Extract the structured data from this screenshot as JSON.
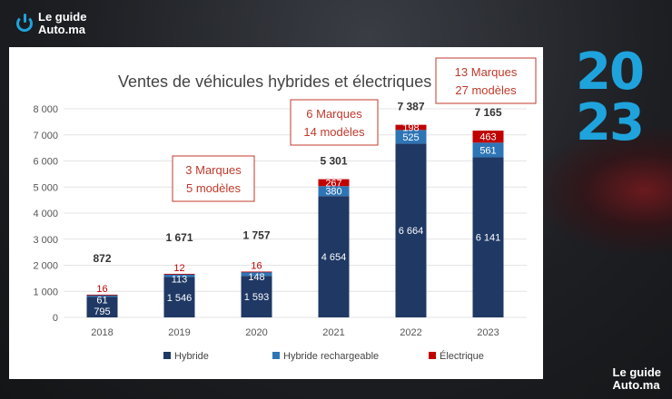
{
  "branding": {
    "logo_line1": "Le guide",
    "logo_line2": "Auto.ma",
    "year": "2023"
  },
  "colors": {
    "hybride": "#1f3864",
    "hybride_rechargeable": "#2e75b6",
    "electrique": "#c00000",
    "callout": "#c0392b",
    "accent": "#1fa3dc"
  },
  "chart_data": {
    "type": "bar",
    "stacked": true,
    "title": "Ventes de véhicules hybrides et électriques",
    "categories": [
      "2018",
      "2019",
      "2020",
      "2021",
      "2022",
      "2023"
    ],
    "series": [
      {
        "name": "Hybride",
        "values": [
          795,
          1546,
          1593,
          4654,
          6664,
          6141
        ],
        "labels": [
          "795",
          "1 546",
          "1 593",
          "4 654",
          "6 664",
          "6 141"
        ]
      },
      {
        "name": "Hybride rechargeable",
        "values": [
          61,
          113,
          148,
          380,
          525,
          561
        ],
        "labels": [
          "61",
          "113",
          "148",
          "380",
          "525",
          "561"
        ]
      },
      {
        "name": "Électrique",
        "values": [
          16,
          12,
          16,
          267,
          198,
          463
        ],
        "labels": [
          "16",
          "12",
          "16",
          "267",
          "198",
          "463"
        ]
      }
    ],
    "totals": [
      "872",
      "1 671",
      "1 757",
      "5 301",
      "7 387",
      "7 165"
    ],
    "y_ticks": [
      "0",
      "1 000",
      "2 000",
      "3 000",
      "4 000",
      "5 000",
      "6 000",
      "7 000",
      "8 000"
    ],
    "ylim": [
      0,
      8000
    ],
    "legend_position": "bottom",
    "annotations": [
      {
        "year": "2021",
        "line1": "3 Marques",
        "line2": "5 modèles"
      },
      {
        "year": "2022",
        "line1": "6 Marques",
        "line2": "14 modèles"
      },
      {
        "year": "2023",
        "line1": "13 Marques",
        "line2": "27 modèles"
      }
    ]
  }
}
